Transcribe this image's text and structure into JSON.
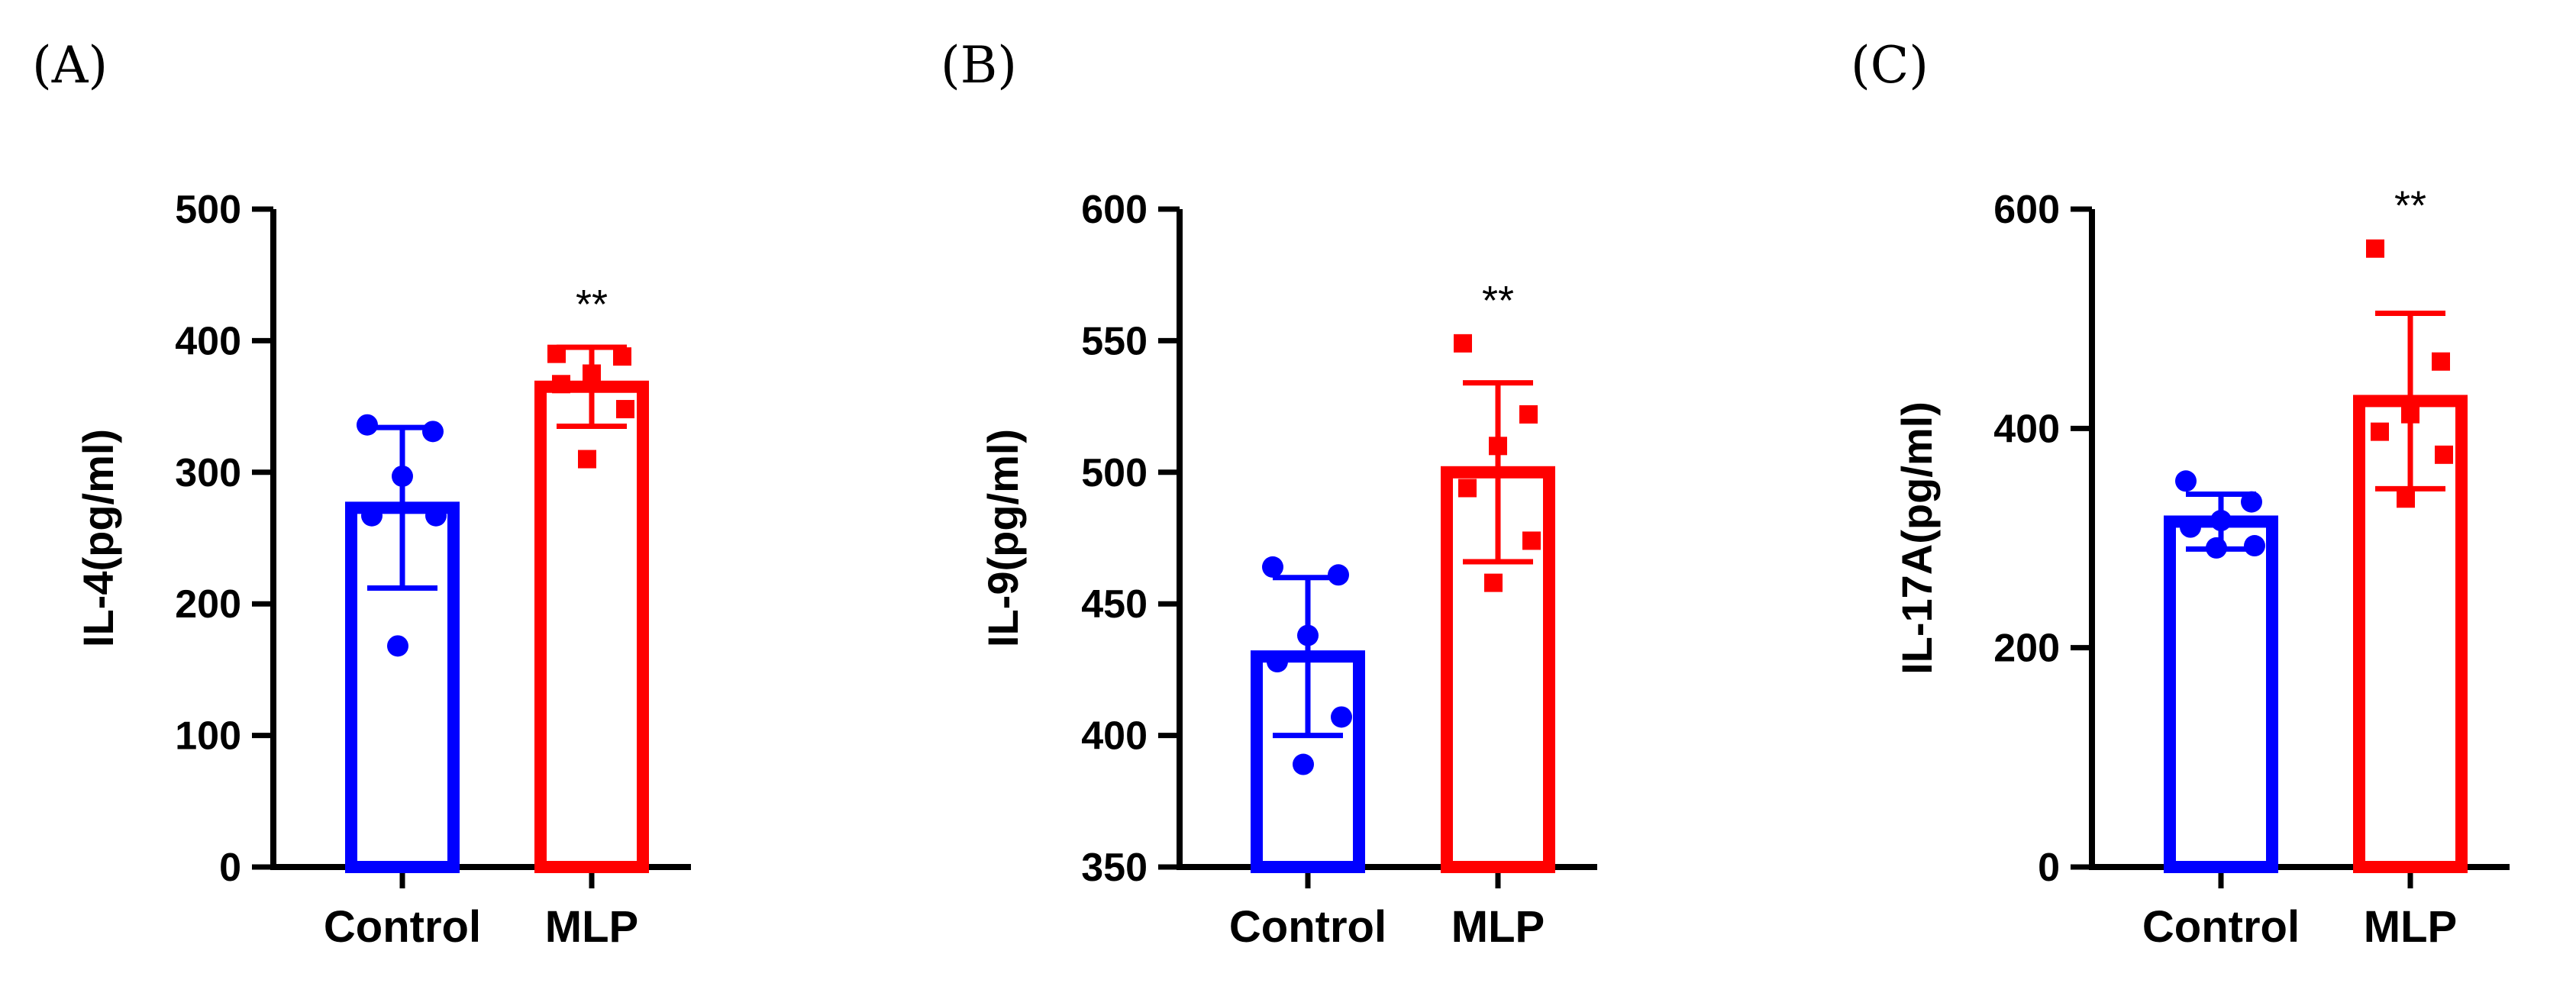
{
  "chart_data": [
    {
      "panel_label": "(A)",
      "type": "bar",
      "ylabel": "IL-4(pg/ml)",
      "ylim": [
        0,
        500
      ],
      "yticks": [
        0,
        100,
        200,
        300,
        400,
        500
      ],
      "categories": [
        "Control",
        "MLP"
      ],
      "colors": [
        "#0000ff",
        "#ff0000"
      ],
      "means": [
        273,
        365
      ],
      "sd": [
        61,
        30
      ],
      "points": [
        [
          336,
          331,
          297,
          267,
          267,
          168
        ],
        [
          390,
          388,
          375,
          367,
          348,
          310
        ]
      ],
      "markers": [
        "circle",
        "square"
      ],
      "significance": "**"
    },
    {
      "panel_label": "(B)",
      "type": "bar",
      "ylabel": "IL-9(pg/ml)",
      "ylim": [
        350,
        600
      ],
      "yticks": [
        350,
        400,
        450,
        500,
        550,
        600
      ],
      "categories": [
        "Control",
        "MLP"
      ],
      "colors": [
        "#0000ff",
        "#ff0000"
      ],
      "means": [
        430,
        500
      ],
      "sd": [
        30,
        34
      ],
      "points": [
        [
          464,
          461,
          438,
          428,
          407,
          389
        ],
        [
          549,
          522,
          510,
          494,
          474,
          458
        ]
      ],
      "markers": [
        "circle",
        "square"
      ],
      "significance": "**"
    },
    {
      "panel_label": "(C)",
      "type": "bar",
      "ylabel": "IL-17A(pg/ml)",
      "ylim": [
        0,
        600
      ],
      "yticks": [
        0,
        200,
        400,
        600
      ],
      "categories": [
        "Control",
        "MLP"
      ],
      "colors": [
        "#0000ff",
        "#ff0000"
      ],
      "means": [
        315,
        425
      ],
      "sd": [
        25,
        80
      ],
      "points": [
        [
          352,
          333,
          316,
          310,
          293,
          291
        ],
        [
          564,
          461,
          413,
          397,
          376,
          336
        ]
      ],
      "markers": [
        "circle",
        "square"
      ],
      "significance": "**"
    }
  ]
}
